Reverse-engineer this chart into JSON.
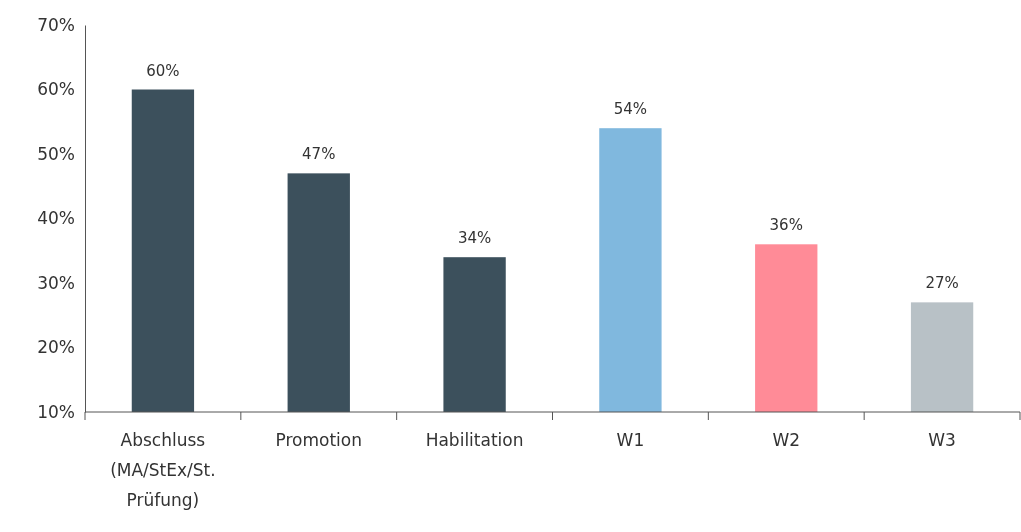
{
  "chart_data": {
    "type": "bar",
    "categories": [
      "Abschluss (MA/StEx/St. Prüfung)",
      "Promotion",
      "Habilitation",
      "W1",
      "W2",
      "W3"
    ],
    "values": [
      60,
      47,
      34,
      54,
      36,
      27
    ],
    "colors": [
      "#3c505c",
      "#3c505c",
      "#3c505c",
      "#80b8de",
      "#ff8b97",
      "#b8c1c6"
    ],
    "value_labels": [
      "60%",
      "47%",
      "34%",
      "54%",
      "36%",
      "27%"
    ],
    "ylim": [
      10,
      70
    ],
    "yticks": [
      {
        "value": 10,
        "label": "10%"
      },
      {
        "value": 20,
        "label": "20%"
      },
      {
        "value": 30,
        "label": "30%"
      },
      {
        "value": 40,
        "label": "40%"
      },
      {
        "value": 50,
        "label": "50%"
      },
      {
        "value": 60,
        "label": "60%"
      },
      {
        "value": 70,
        "label": "70%"
      }
    ],
    "grid": false
  }
}
